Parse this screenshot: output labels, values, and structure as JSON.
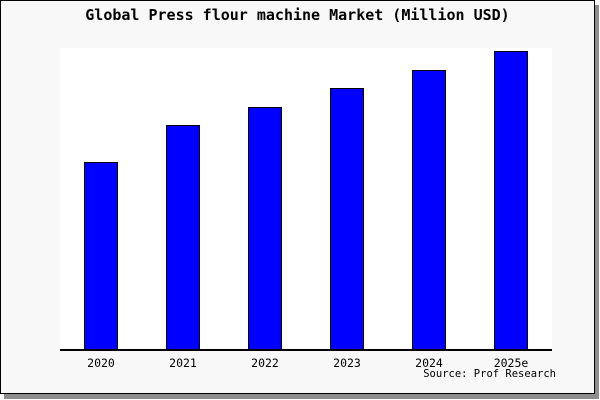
{
  "chart_data": {
    "type": "bar",
    "title": "Global Press flour machine Market (Million USD)",
    "categories": [
      "2020",
      "2021",
      "2022",
      "2023",
      "2024",
      "2025e"
    ],
    "values": [
      62.7,
      75.0,
      81.3,
      87.7,
      93.7,
      100.0
    ],
    "value_scale": "relative units; chart shows no y-axis or value labels, values normalized so 2025e = 100",
    "xlabel": "",
    "ylabel": "",
    "grid": false,
    "legend": false,
    "bar_color": "#0000ff",
    "bar_border_color": "#000000",
    "plot_background_color": "#ffffff",
    "figure_background_color": "#f8f8f9",
    "frame_color": "#000000",
    "shadow_color": "#8d8d8d",
    "source_label": "Source: Prof Research"
  }
}
